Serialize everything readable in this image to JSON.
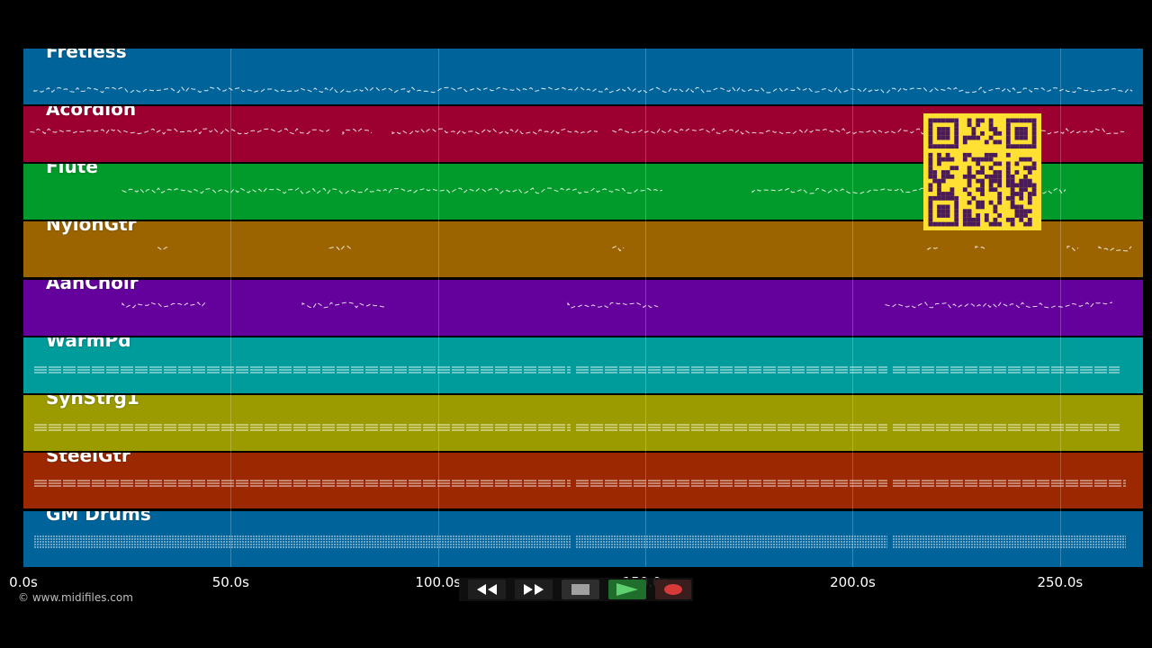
{
  "tracks": [
    {
      "name": "Fretless",
      "color": "#00649b"
    },
    {
      "name": "Acordion",
      "color": "#9b0030"
    },
    {
      "name": "Flute",
      "color": "#009b2a"
    },
    {
      "name": "NylonGtr",
      "color": "#9b6400"
    },
    {
      "name": "AahChoir",
      "color": "#64009b"
    },
    {
      "name": "WarmPd",
      "color": "#009b9b"
    },
    {
      "name": "SynStrg1",
      "color": "#9b9b00"
    },
    {
      "name": "SteelGtr",
      "color": "#9b2800"
    },
    {
      "name": "GM Drums",
      "color": "#00649b"
    }
  ],
  "timeline": {
    "ticks": [
      "0.0s",
      "50.0s",
      "100.0s",
      "150.0s",
      "200.0s",
      "250.0s"
    ],
    "tick_values": [
      0,
      50,
      100,
      150,
      200,
      250
    ],
    "max_seconds": 270
  },
  "copyright": "© www.midifiles.com",
  "transport": {
    "rewind_icon": "rewind-icon",
    "fast_forward_icon": "fast-forward-icon",
    "stop_icon": "stop-icon",
    "play_icon": "play-icon",
    "record_icon": "record-icon"
  },
  "qr": {
    "background": "#ffe033",
    "foreground": "#4a1a5a"
  }
}
